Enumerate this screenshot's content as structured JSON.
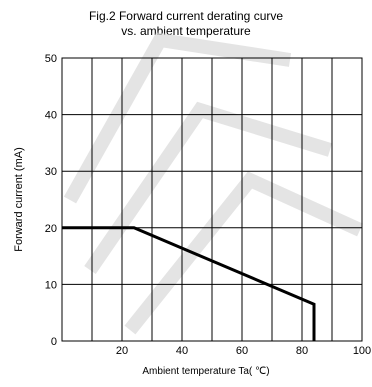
{
  "chart_data": {
    "type": "line",
    "title": "Fig.2 Forward current derating curve",
    "subtitle": "vs. ambient temperature",
    "xlabel": "Ambient temperature Ta( ℃)",
    "ylabel": "Forward current (mA)",
    "xlim": [
      0,
      100
    ],
    "ylim": [
      0,
      50
    ],
    "xticks": [
      20,
      40,
      60,
      80,
      100
    ],
    "yticks": [
      0,
      10,
      20,
      30,
      40,
      50
    ],
    "x_gridlines": [
      10,
      20,
      30,
      40,
      50,
      60,
      70,
      80,
      90,
      100
    ],
    "y_gridlines": [
      10,
      20,
      30,
      40,
      50
    ],
    "grid": true,
    "series": [
      {
        "x": [
          0,
          24,
          84,
          84
        ],
        "y": [
          20,
          20,
          6.5,
          0
        ]
      }
    ],
    "colors": {
      "line": "#000000",
      "grid": "#000000",
      "watermark": "#d9d9d9"
    }
  }
}
